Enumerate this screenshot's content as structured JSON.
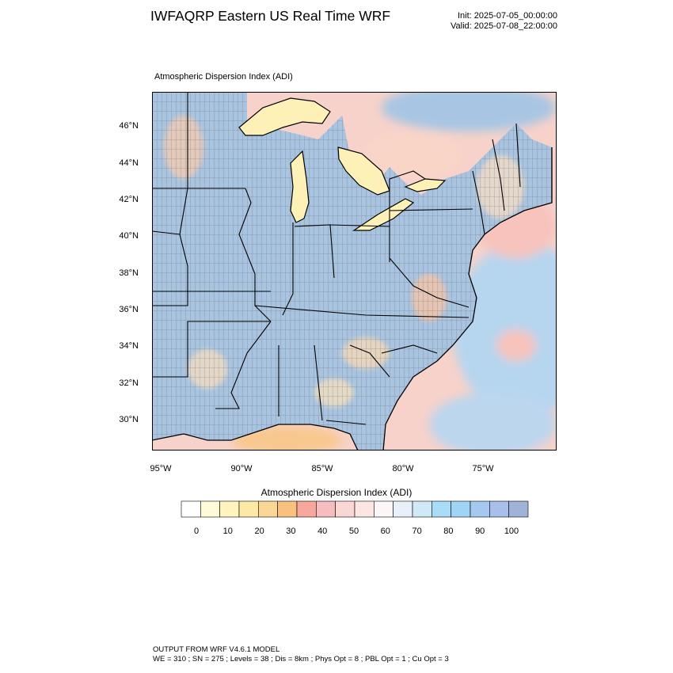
{
  "header": {
    "title": "IWFAQRP Eastern US Real Time WRF",
    "init": "Init: 2025-07-05_00:00:00",
    "valid": "Valid: 2025-07-08_22:00:00"
  },
  "map": {
    "field_label": "Atmospheric Dispersion Index   (ADI)",
    "lat_labels": [
      "46°N",
      "44°N",
      "42°N",
      "40°N",
      "38°N",
      "36°N",
      "34°N",
      "32°N",
      "30°N"
    ],
    "lon_labels": [
      "95°W",
      "90°W",
      "85°W",
      "80°W",
      "75°W"
    ],
    "colors": {
      "land_base": "#a9c4e0",
      "lake": "#fdf1b8",
      "ocean_pink": "#f8c9c2",
      "ocean_blue": "#b6d6ef",
      "orange": "#f7c98f",
      "boundary": "#000000"
    }
  },
  "colorbar": {
    "title": "Atmospheric Dispersion Index  (ADI)",
    "colors": [
      "#ffffff",
      "#fffbd8",
      "#fff4c0",
      "#fde9a6",
      "#fbd795",
      "#f8c17f",
      "#f7a79b",
      "#f5bdbd",
      "#fad7d2",
      "#fde6e2",
      "#fdf6f6",
      "#e7f0fb",
      "#cfe9f7",
      "#a9dcf6",
      "#a0d4f5",
      "#a5c8f0",
      "#a7bfea",
      "#9fb3d6"
    ],
    "labels": [
      "0",
      "10",
      "20",
      "30",
      "40",
      "50",
      "60",
      "70",
      "80",
      "90",
      "100"
    ]
  },
  "footer": {
    "line1": "OUTPUT FROM WRF V4.6.1 MODEL",
    "line2": "WE = 310 ; SN = 275 ; Levels = 38 ; Dis = 8km ; Phys Opt = 8 ; PBL Opt = 1 ; Cu Opt = 3"
  }
}
